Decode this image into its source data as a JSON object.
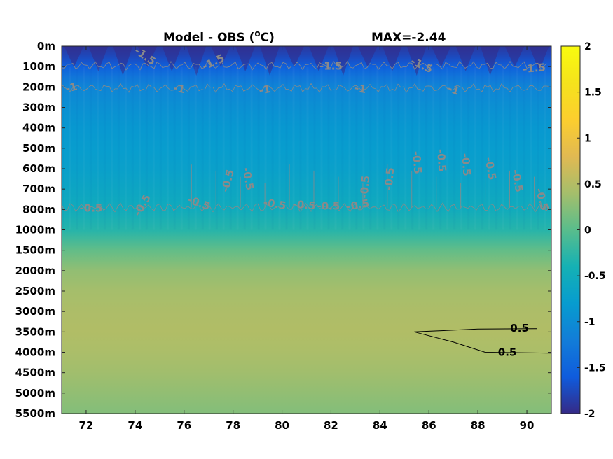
{
  "chart_data": {
    "type": "heatmap",
    "title": "Model - OBS (°C)",
    "title_main": "Model - OBS (",
    "title_sup": "o",
    "title_end": "C)",
    "max_label": "MAX=-2.44",
    "x": {
      "range": [
        71,
        91
      ],
      "ticks": [
        72,
        74,
        76,
        78,
        80,
        82,
        84,
        86,
        88,
        90
      ],
      "tick_labels": [
        "72",
        "74",
        "76",
        "78",
        "80",
        "82",
        "84",
        "86",
        "88",
        "90"
      ]
    },
    "y": {
      "tick_labels": [
        "0m",
        "100m",
        "200m",
        "300m",
        "400m",
        "500m",
        "600m",
        "700m",
        "800m",
        "1000m",
        "1500m",
        "2000m",
        "2500m",
        "3000m",
        "3500m",
        "4000m",
        "4500m",
        "5000m",
        "5500m"
      ],
      "depths": [
        0,
        100,
        200,
        300,
        400,
        500,
        600,
        700,
        800,
        1000,
        1500,
        2000,
        2500,
        3000,
        3500,
        4000,
        4500,
        5000,
        5500
      ]
    },
    "colorbar": {
      "range": [
        -2,
        2
      ],
      "ticks": [
        2,
        1.5,
        1,
        0.5,
        0,
        -0.5,
        -1,
        -1.5,
        -2
      ],
      "tick_labels": [
        "2",
        "1.5",
        "1",
        "0.5",
        "0",
        "-0.5",
        "-1",
        "-1.5",
        "-2"
      ],
      "colormap": "parula"
    },
    "profile": [
      {
        "depth": 0,
        "value": -1.9
      },
      {
        "depth": 50,
        "value": -1.75
      },
      {
        "depth": 100,
        "value": -1.55
      },
      {
        "depth": 150,
        "value": -1.3
      },
      {
        "depth": 200,
        "value": -1.1
      },
      {
        "depth": 300,
        "value": -0.95
      },
      {
        "depth": 400,
        "value": -0.85
      },
      {
        "depth": 500,
        "value": -0.78
      },
      {
        "depth": 600,
        "value": -0.72
      },
      {
        "depth": 700,
        "value": -0.62
      },
      {
        "depth": 800,
        "value": -0.52
      },
      {
        "depth": 1000,
        "value": -0.3
      },
      {
        "depth": 1500,
        "value": 0.05
      },
      {
        "depth": 2000,
        "value": 0.3
      },
      {
        "depth": 2500,
        "value": 0.4
      },
      {
        "depth": 3000,
        "value": 0.45
      },
      {
        "depth": 3500,
        "value": 0.48
      },
      {
        "depth": 4000,
        "value": 0.44
      },
      {
        "depth": 4500,
        "value": 0.38
      },
      {
        "depth": 5000,
        "value": 0.3
      },
      {
        "depth": 5500,
        "value": 0.22
      }
    ],
    "contour_labels": [
      {
        "text": "-1.5",
        "x": 74.4,
        "depth": 50,
        "angle": 35
      },
      {
        "text": "-1.5",
        "x": 77.2,
        "depth": 80,
        "angle": -25
      },
      {
        "text": "-1.5",
        "x": 82.0,
        "depth": 100,
        "angle": 0
      },
      {
        "text": "-1.5",
        "x": 85.7,
        "depth": 95,
        "angle": 25
      },
      {
        "text": "-1.5",
        "x": 90.3,
        "depth": 110,
        "angle": -5
      },
      {
        "text": "-1",
        "x": 71.4,
        "depth": 205,
        "angle": -15
      },
      {
        "text": "-1",
        "x": 75.8,
        "depth": 210,
        "angle": 10
      },
      {
        "text": "-1",
        "x": 79.3,
        "depth": 215,
        "angle": -10
      },
      {
        "text": "-1",
        "x": 83.2,
        "depth": 210,
        "angle": 10
      },
      {
        "text": "-1",
        "x": 87.0,
        "depth": 215,
        "angle": 20
      },
      {
        "text": "-0.5",
        "x": 72.2,
        "depth": 795,
        "angle": 0
      },
      {
        "text": "-0.5",
        "x": 74.3,
        "depth": 780,
        "angle": -60
      },
      {
        "text": "-0.5",
        "x": 76.6,
        "depth": 770,
        "angle": 20
      },
      {
        "text": "-0.5",
        "x": 77.8,
        "depth": 660,
        "angle": -75
      },
      {
        "text": "-0.5",
        "x": 78.6,
        "depth": 650,
        "angle": 80
      },
      {
        "text": "-0.5",
        "x": 79.7,
        "depth": 775,
        "angle": 10
      },
      {
        "text": "-0.5",
        "x": 80.9,
        "depth": 780,
        "angle": 5
      },
      {
        "text": "-0.5",
        "x": 81.9,
        "depth": 785,
        "angle": 0
      },
      {
        "text": "-0.5",
        "x": 83.1,
        "depth": 780,
        "angle": -10
      },
      {
        "text": "-0.5",
        "x": 83.4,
        "depth": 690,
        "angle": -85
      },
      {
        "text": "-0.5",
        "x": 84.4,
        "depth": 650,
        "angle": -85
      },
      {
        "text": "-0.5",
        "x": 85.5,
        "depth": 570,
        "angle": 85
      },
      {
        "text": "-0.5",
        "x": 86.5,
        "depth": 560,
        "angle": 85
      },
      {
        "text": "-0.5",
        "x": 87.5,
        "depth": 580,
        "angle": 85
      },
      {
        "text": "-0.5",
        "x": 88.5,
        "depth": 600,
        "angle": 80
      },
      {
        "text": "-0.5",
        "x": 89.6,
        "depth": 660,
        "angle": 80
      },
      {
        "text": "-0.5",
        "x": 90.6,
        "depth": 750,
        "angle": 75
      }
    ],
    "zero_point_five_contour": {
      "points": [
        {
          "x": 90.4,
          "depth": 3420
        },
        {
          "x": 88.0,
          "depth": 3430
        },
        {
          "x": 85.4,
          "depth": 3500
        },
        {
          "x": 87.0,
          "depth": 3750
        },
        {
          "x": 88.3,
          "depth": 4000
        },
        {
          "x": 91,
          "depth": 4020
        }
      ],
      "labels": [
        {
          "text": "0.5",
          "x": 89.7,
          "depth": 3420
        },
        {
          "text": "0.5",
          "x": 89.2,
          "depth": 4010
        }
      ]
    }
  }
}
